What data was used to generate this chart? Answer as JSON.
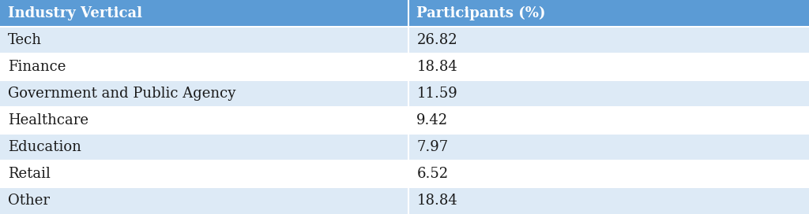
{
  "header": [
    "Industry Vertical",
    "Participants (%)"
  ],
  "rows": [
    [
      "Tech",
      "26.82"
    ],
    [
      "Finance",
      "18.84"
    ],
    [
      "Government and Public Agency",
      "11.59"
    ],
    [
      "Healthcare",
      "9.42"
    ],
    [
      "Education",
      "7.97"
    ],
    [
      "Retail",
      "6.52"
    ],
    [
      "Other",
      "18.84"
    ]
  ],
  "header_bg_color": "#5B9BD5",
  "header_text_color": "#FFFFFF",
  "row_bg_even": "#DDEAF6",
  "row_bg_odd": "#FFFFFF",
  "separator_color": "#FFFFFF",
  "text_color": "#1A1A1A",
  "font_size": 13,
  "header_font_size": 13,
  "col_split": 0.505,
  "fig_width": 10.24,
  "fig_height": 2.72,
  "outer_bg": "#FFFFFF"
}
